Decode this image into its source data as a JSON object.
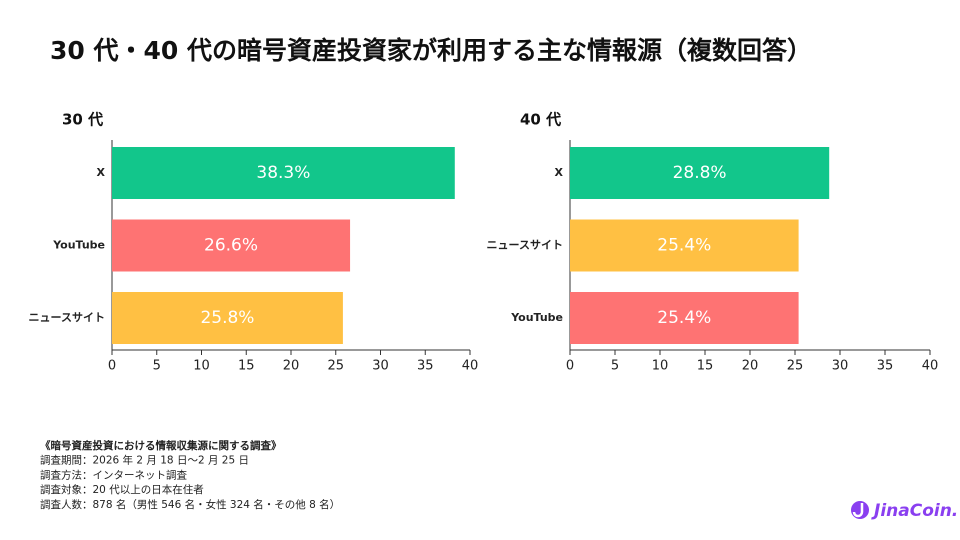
{
  "title": "30 代・40 代の暗号資産投資家が利用する主な情報源（複数回答）",
  "chart_data": [
    {
      "type": "bar",
      "orientation": "horizontal",
      "title": "30 代",
      "categories": [
        "X",
        "YouTube",
        "ニュースサイト"
      ],
      "values": [
        38.3,
        26.6,
        25.8
      ],
      "value_labels": [
        "38.3%",
        "26.6%",
        "25.8%"
      ],
      "colors": [
        "#12c68b",
        "#fe7373",
        "#ffc043"
      ],
      "xlim": [
        0,
        40
      ],
      "xticks": [
        0,
        5,
        10,
        15,
        20,
        25,
        30,
        35,
        40
      ],
      "grid": false
    },
    {
      "type": "bar",
      "orientation": "horizontal",
      "title": "40 代",
      "categories": [
        "X",
        "ニュースサイト",
        "YouTube"
      ],
      "values": [
        28.8,
        25.4,
        25.4
      ],
      "value_labels": [
        "28.8%",
        "25.4%",
        "25.4%"
      ],
      "colors": [
        "#12c68b",
        "#ffc043",
        "#fe7373"
      ],
      "xlim": [
        0,
        40
      ],
      "xticks": [
        0,
        5,
        10,
        15,
        20,
        25,
        30,
        35,
        40
      ],
      "grid": false
    }
  ],
  "notes": [
    "《暗号資産投資における情報収集源に関する調査》",
    "調査期間：2026 年 2 月 18 日〜2 月 25 日",
    "調査方法：インターネット調査",
    "調査対象：20 代以上の日本在住者",
    "調査人数：878 名（男性 546 名・女性 324 名・その他 8 名）"
  ],
  "logo": "JinaCoin."
}
